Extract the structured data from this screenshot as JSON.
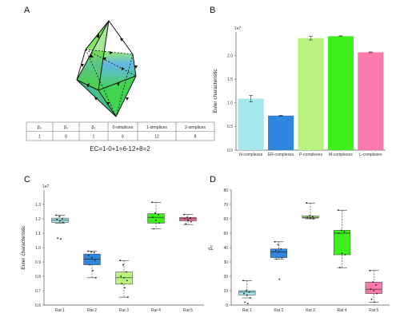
{
  "panels": {
    "a": "A",
    "b": "B",
    "c": "C",
    "d": "D"
  },
  "panel_a": {
    "table": {
      "headers": [
        "β₀",
        "β₁",
        "β₂",
        "0-simplices",
        "1-simplices",
        "2-simplices"
      ],
      "values": [
        "1",
        "0",
        "1",
        "6",
        "12",
        "8"
      ]
    },
    "equation": "EC=1-0+1=6-12+8=2"
  },
  "chart_data": [
    {
      "panel": "B",
      "type": "bar",
      "categories": [
        "N-complexes",
        "ER-complexes",
        "P-complexes",
        "M-complexes",
        "L-complexes"
      ],
      "values": [
        10900000,
        7300000,
        23700000,
        24100000,
        20700000
      ],
      "errors": [
        700000,
        80000,
        400000,
        80000,
        80000
      ],
      "colors": [
        "#a6e7ec",
        "#2f86e0",
        "#b9f27f",
        "#3ef01b",
        "#fb79ad"
      ],
      "ylabel": "Euler characteristic",
      "ylim": [
        0,
        25000000
      ],
      "yticks": [
        "0.0",
        "0.5",
        "1.0",
        "1.5",
        "2.0"
      ],
      "ytick_values": [
        0,
        5000000,
        10000000,
        15000000,
        20000000
      ],
      "exponent": "1e7",
      "xlabel": ""
    },
    {
      "panel": "C",
      "type": "box",
      "categories": [
        "Rat 1",
        "Rat 2",
        "Rat 3",
        "Rat 4",
        "Rat 5"
      ],
      "boxes": [
        {
          "whislo": 1.17,
          "q1": 1.175,
          "med": 1.19,
          "q3": 1.205,
          "whishi": 1.225
        },
        {
          "whislo": 0.79,
          "q1": 0.88,
          "med": 0.92,
          "q3": 0.955,
          "whishi": 0.975
        },
        {
          "whislo": 0.655,
          "q1": 0.745,
          "med": 0.79,
          "q3": 0.83,
          "whishi": 0.91
        },
        {
          "whislo": 1.13,
          "q1": 1.17,
          "med": 1.21,
          "q3": 1.235,
          "whishi": 1.315
        },
        {
          "whislo": 1.16,
          "q1": 1.185,
          "med": 1.2,
          "q3": 1.21,
          "whishi": 1.23
        }
      ],
      "points": [
        [
          1.225,
          1.215,
          1.2,
          1.195,
          1.185,
          1.175,
          1.065,
          1.06
        ],
        [
          0.975,
          0.97,
          0.965,
          0.945,
          0.93,
          0.91,
          0.88,
          0.84,
          0.79
        ],
        [
          0.91,
          0.88,
          0.83,
          0.8,
          0.79,
          0.77,
          0.75,
          0.72,
          0.655
        ],
        [
          1.315,
          1.24,
          1.23,
          1.21,
          1.19,
          1.17,
          1.13
        ],
        [
          1.23,
          1.21,
          1.205,
          1.2,
          1.19,
          1.18,
          1.165
        ]
      ],
      "colors": [
        "#a6e7ec",
        "#2f86e0",
        "#b9f27f",
        "#3ef01b",
        "#fb79ad"
      ],
      "ylabel": "Euler characteristic",
      "ylim": [
        0.6,
        1.4
      ],
      "yticks": [
        "0.6",
        "0.7",
        "0.8",
        "0.9",
        "1.0",
        "1.1",
        "1.2",
        "1.3"
      ],
      "ytick_values": [
        0.6,
        0.7,
        0.8,
        0.9,
        1.0,
        1.1,
        1.2,
        1.3
      ],
      "exponent": "1e7"
    },
    {
      "panel": "D",
      "type": "box",
      "categories": [
        "Rat 1",
        "Rat 2",
        "Rat 3",
        "Rat 4",
        "Rat 5"
      ],
      "boxes": [
        {
          "whislo": 5,
          "q1": 7,
          "med": 9,
          "q3": 10,
          "whishi": 17
        },
        {
          "whislo": 32,
          "q1": 33,
          "med": 37,
          "q3": 39,
          "whishi": 44
        },
        {
          "whislo": 60,
          "q1": 60.5,
          "med": 61,
          "q3": 62,
          "whishi": 71
        },
        {
          "whislo": 26,
          "q1": 35,
          "med": 50,
          "q3": 52,
          "whishi": 66
        },
        {
          "whislo": 2,
          "q1": 8,
          "med": 11,
          "q3": 16,
          "whishi": 24
        }
      ],
      "points": [
        [
          17,
          10,
          9,
          8,
          7,
          5,
          2,
          1
        ],
        [
          44,
          42,
          39,
          38,
          37,
          33,
          32,
          18
        ],
        [
          71,
          62,
          61.5,
          61,
          60.5,
          60
        ],
        [
          66,
          52,
          51,
          50,
          36,
          35,
          26
        ],
        [
          24,
          16,
          14,
          11,
          10,
          8,
          4,
          2
        ]
      ],
      "colors": [
        "#a6e7ec",
        "#2f86e0",
        "#b9f27f",
        "#3ef01b",
        "#fb79ad"
      ],
      "ylabel": "β₂",
      "ylim": [
        0,
        80
      ],
      "yticks": [
        "0",
        "10",
        "20",
        "30",
        "40",
        "50",
        "60",
        "70",
        "80"
      ],
      "ytick_values": [
        0,
        10,
        20,
        30,
        40,
        50,
        60,
        70,
        80
      ]
    }
  ]
}
